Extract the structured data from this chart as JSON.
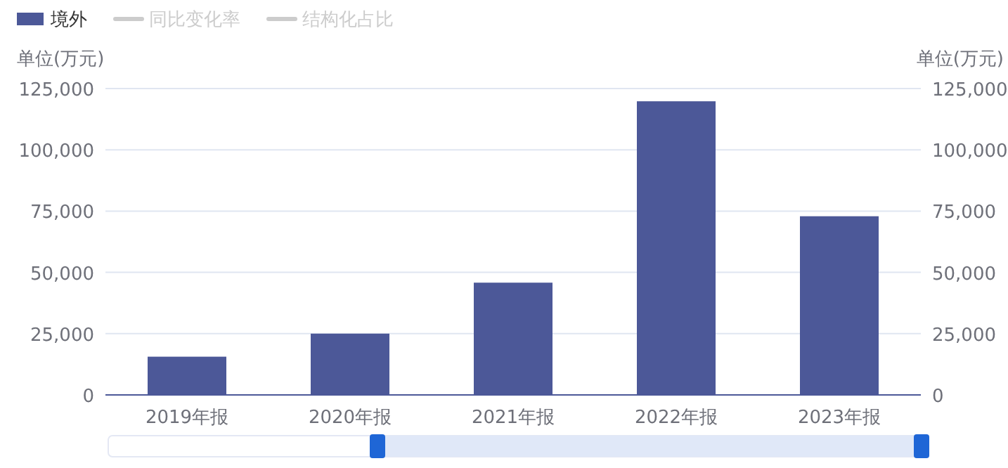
{
  "chart_data": {
    "type": "bar",
    "categories": [
      "2019年报",
      "2020年报",
      "2021年报",
      "2022年报",
      "2023年报"
    ],
    "series": [
      {
        "name": "境外",
        "color": "#4c5898",
        "values": [
          15600,
          25000,
          45800,
          119800,
          72900
        ]
      },
      {
        "name": "同比变化率",
        "type": "line",
        "color": "#cccccc",
        "values": [
          null,
          null,
          null,
          null,
          null
        ]
      },
      {
        "name": "结构化占比",
        "type": "line",
        "color": "#cccccc",
        "values": [
          null,
          null,
          null,
          null,
          null
        ]
      }
    ],
    "ylabel": "单位(万元)",
    "y2label": "单位(万元)",
    "ylim": [
      0,
      125000
    ],
    "yticks": [
      0,
      {
        "value": 25000,
        "label": "25,000"
      },
      {
        "value": 50000,
        "label": "50,000"
      },
      {
        "value": 75000,
        "label": "75,000"
      },
      {
        "value": 100000,
        "label": "100,000"
      },
      {
        "value": 125000,
        "label": "125,000"
      }
    ],
    "y2lim": [
      0,
      125000
    ],
    "y2ticks": [
      0,
      {
        "value": 25000,
        "label": "25,000"
      },
      {
        "value": 50000,
        "label": "50,000"
      },
      {
        "value": 75000,
        "label": "75,000"
      },
      {
        "value": 100000,
        "label": "100,000"
      },
      {
        "value": 125000,
        "label": "125,000"
      }
    ],
    "grid": "y",
    "legend": "top left"
  }
}
